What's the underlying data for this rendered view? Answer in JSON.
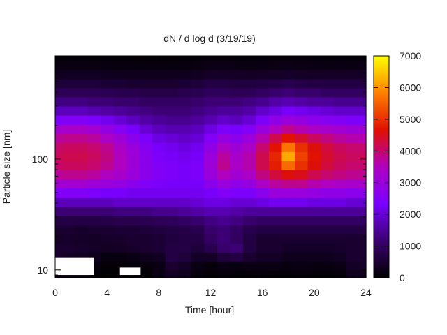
{
  "chart_data": {
    "type": "heatmap",
    "title": "dN / d log d (3/19/19)",
    "xlabel": "Time [hour]",
    "ylabel": "Particle size [nm]",
    "xlim": [
      0,
      24
    ],
    "ylim_nm": [
      8.5,
      850
    ],
    "y_scale": "log",
    "x_ticks": [
      0,
      4,
      8,
      12,
      16,
      20,
      24
    ],
    "y_ticks": [
      10,
      100
    ],
    "colorbar": {
      "range": [
        0,
        7000
      ],
      "ticks": [
        0,
        1000,
        2000,
        3000,
        4000,
        5000,
        6000,
        7000
      ],
      "colormap": "black-purple-blue-red-orange-yellow",
      "stops": [
        "#000000",
        "#3a0070",
        "#7a00ff",
        "#b000c0",
        "#e01000",
        "#ff8000",
        "#ffff00"
      ]
    },
    "hours": [
      0,
      1,
      2,
      3,
      4,
      5,
      6,
      7,
      8,
      9,
      10,
      11,
      12,
      13,
      14,
      15,
      16,
      17,
      18,
      19,
      20,
      21,
      22,
      23,
      24
    ],
    "size_bins_nm": [
      9,
      11,
      13,
      16,
      19,
      23,
      28,
      34,
      41,
      50,
      60,
      73,
      88,
      106,
      128,
      155,
      187,
      226,
      273,
      330,
      398,
      481,
      580,
      700,
      840
    ],
    "no_data_regions": [
      {
        "hours": [
          0,
          3.0
        ],
        "sizes_nm": [
          9,
          13
        ]
      },
      {
        "hours": [
          5.0,
          6.6
        ],
        "sizes_nm": [
          9,
          10.5
        ]
      }
    ],
    "values": [
      [
        200,
        150,
        120,
        80,
        30,
        40,
        40,
        40,
        200,
        400,
        300,
        120,
        60,
        100,
        80,
        80,
        100,
        80,
        80,
        100,
        80,
        80,
        100,
        300,
        300
      ],
      [
        400,
        300,
        250,
        150,
        60,
        60,
        80,
        100,
        200,
        500,
        400,
        200,
        100,
        200,
        150,
        200,
        200,
        200,
        150,
        200,
        150,
        150,
        200,
        400,
        400
      ],
      [
        500,
        400,
        350,
        300,
        150,
        150,
        200,
        300,
        350,
        700,
        600,
        400,
        400,
        600,
        700,
        500,
        400,
        400,
        300,
        300,
        300,
        300,
        350,
        500,
        500
      ],
      [
        500,
        500,
        450,
        400,
        350,
        400,
        450,
        500,
        550,
        700,
        700,
        600,
        800,
        1100,
        1200,
        700,
        500,
        500,
        400,
        400,
        400,
        400,
        450,
        500,
        500
      ],
      [
        400,
        450,
        400,
        400,
        450,
        450,
        500,
        500,
        550,
        650,
        700,
        700,
        1000,
        1200,
        1000,
        700,
        500,
        500,
        500,
        500,
        500,
        500,
        500,
        500,
        500
      ],
      [
        500,
        500,
        450,
        500,
        500,
        550,
        550,
        600,
        650,
        700,
        750,
        800,
        1100,
        1200,
        1000,
        800,
        700,
        700,
        700,
        700,
        700,
        700,
        700,
        700,
        700
      ],
      [
        700,
        700,
        700,
        700,
        750,
        800,
        800,
        850,
        900,
        950,
        1000,
        1100,
        1300,
        1400,
        1300,
        1100,
        1000,
        1000,
        1000,
        1000,
        1000,
        1000,
        1000,
        1000,
        1000
      ],
      [
        1200,
        1200,
        1200,
        1200,
        1200,
        1300,
        1300,
        1300,
        1400,
        1400,
        1500,
        1600,
        1700,
        1700,
        1600,
        1500,
        1500,
        1500,
        1500,
        1500,
        1500,
        1500,
        1500,
        1500,
        1500
      ],
      [
        1800,
        1800,
        1800,
        1800,
        1800,
        1900,
        1900,
        1900,
        1900,
        1900,
        1900,
        2000,
        2100,
        2100,
        2000,
        2000,
        2100,
        2200,
        2200,
        2200,
        2100,
        2100,
        2100,
        2000,
        2000
      ],
      [
        2500,
        2500,
        2500,
        2400,
        2300,
        2300,
        2200,
        2200,
        2200,
        2200,
        2200,
        2200,
        2300,
        2500,
        2400,
        2400,
        2700,
        3000,
        3000,
        3000,
        2900,
        2800,
        2800,
        2700,
        2700
      ],
      [
        3200,
        3200,
        3200,
        3100,
        3000,
        2900,
        2700,
        2500,
        2400,
        2300,
        2300,
        2300,
        2700,
        3000,
        2800,
        2900,
        3400,
        3700,
        3800,
        3800,
        3600,
        3500,
        3400,
        3300,
        3300
      ],
      [
        3700,
        3800,
        3800,
        3700,
        3500,
        3300,
        3000,
        2700,
        2500,
        2400,
        2300,
        2400,
        3000,
        3500,
        3200,
        3400,
        3900,
        4300,
        4600,
        4500,
        4200,
        4000,
        3900,
        3800,
        3800
      ],
      [
        4000,
        4100,
        4100,
        4000,
        3800,
        3500,
        3100,
        2700,
        2500,
        2400,
        2300,
        2400,
        3100,
        3800,
        3400,
        3600,
        4200,
        4800,
        5600,
        5000,
        4600,
        4300,
        4100,
        4000,
        4000
      ],
      [
        4100,
        4200,
        4200,
        4100,
        3900,
        3500,
        3100,
        2700,
        2400,
        2300,
        2200,
        2300,
        3000,
        3700,
        3300,
        3600,
        4200,
        4900,
        6200,
        5200,
        4700,
        4400,
        4200,
        4100,
        4100
      ],
      [
        4000,
        4100,
        4100,
        4000,
        3800,
        3400,
        3000,
        2600,
        2300,
        2200,
        2100,
        2200,
        2800,
        3400,
        3100,
        3400,
        4000,
        4700,
        5700,
        5000,
        4600,
        4300,
        4100,
        4000,
        4000
      ],
      [
        3700,
        3800,
        3800,
        3700,
        3400,
        3100,
        2700,
        2400,
        2100,
        2000,
        1900,
        2000,
        2500,
        2900,
        2700,
        3000,
        3600,
        4200,
        4700,
        4400,
        4100,
        3900,
        3700,
        3600,
        3600
      ],
      [
        3200,
        3300,
        3300,
        3200,
        2900,
        2600,
        2300,
        2000,
        1800,
        1700,
        1700,
        1800,
        2100,
        2400,
        2300,
        2500,
        3000,
        3500,
        3800,
        3600,
        3400,
        3300,
        3200,
        3100,
        3100
      ],
      [
        2400,
        2500,
        2500,
        2400,
        2200,
        2000,
        1800,
        1600,
        1500,
        1400,
        1400,
        1500,
        1700,
        1900,
        1800,
        2000,
        2400,
        2800,
        3000,
        2900,
        2700,
        2600,
        2500,
        2400,
        2400
      ],
      [
        1800,
        1800,
        1800,
        1700,
        1600,
        1500,
        1400,
        1300,
        1200,
        1200,
        1200,
        1300,
        1400,
        1500,
        1500,
        1600,
        1900,
        2100,
        2300,
        2200,
        2100,
        2000,
        1900,
        1900,
        1900
      ],
      [
        1300,
        1300,
        1300,
        1200,
        1200,
        1100,
        1100,
        1000,
        1000,
        1000,
        1000,
        1100,
        1200,
        1200,
        1200,
        1300,
        1400,
        1600,
        1700,
        1600,
        1500,
        1500,
        1400,
        1400,
        1400
      ],
      [
        900,
        900,
        900,
        900,
        850,
        800,
        800,
        750,
        750,
        750,
        800,
        850,
        950,
        950,
        900,
        900,
        1000,
        1100,
        1200,
        1100,
        1100,
        1000,
        1000,
        1000,
        1000
      ],
      [
        600,
        600,
        600,
        600,
        550,
        550,
        500,
        500,
        500,
        500,
        550,
        600,
        700,
        700,
        650,
        650,
        700,
        750,
        800,
        750,
        700,
        700,
        700,
        700,
        700
      ],
      [
        350,
        350,
        350,
        350,
        330,
        320,
        300,
        300,
        300,
        300,
        320,
        350,
        420,
        420,
        400,
        380,
        400,
        420,
        450,
        420,
        400,
        400,
        400,
        400,
        400
      ],
      [
        180,
        180,
        180,
        180,
        170,
        160,
        150,
        150,
        150,
        150,
        160,
        180,
        220,
        220,
        200,
        190,
        200,
        210,
        220,
        210,
        200,
        200,
        200,
        200,
        200
      ],
      [
        80,
        80,
        80,
        80,
        70,
        70,
        60,
        60,
        60,
        60,
        70,
        80,
        100,
        100,
        90,
        90,
        90,
        100,
        100,
        100,
        90,
        90,
        90,
        90,
        90
      ]
    ]
  }
}
